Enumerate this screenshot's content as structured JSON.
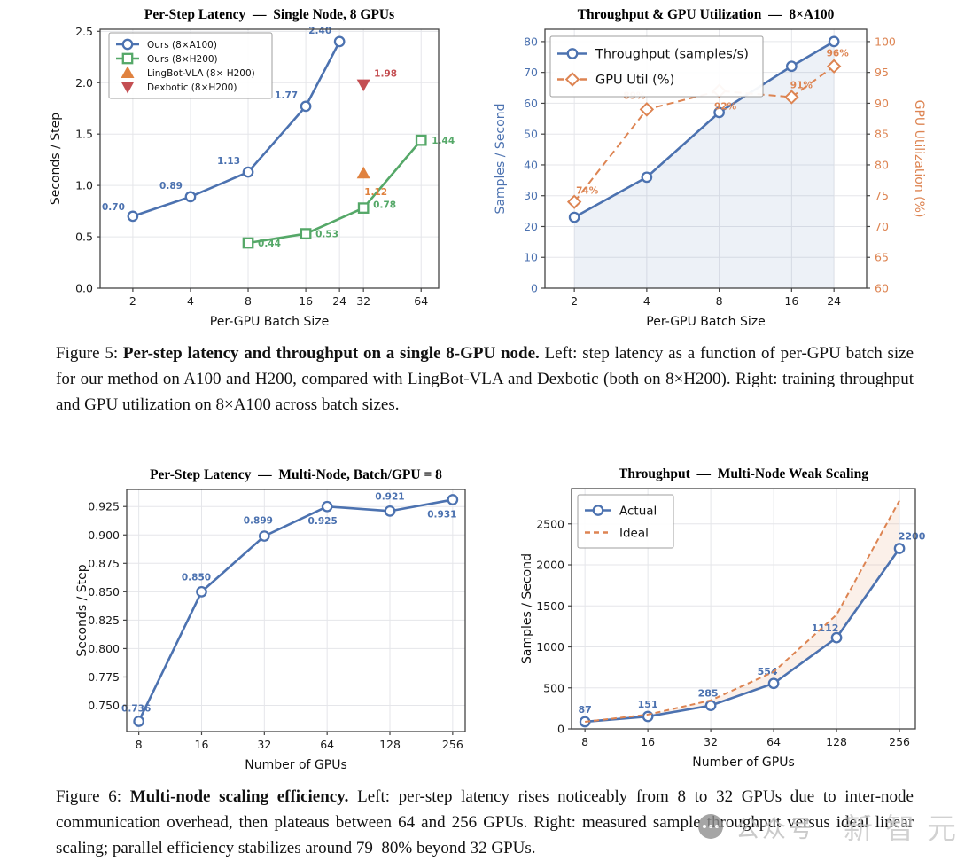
{
  "captions": {
    "fig5": {
      "prefix": "Figure 5: ",
      "bold": "Per-step latency and throughput on a single 8-GPU node.",
      "rest": " Left: step latency as a function of per-GPU batch size for our method on A100 and H200, compared with LingBot-VLA and Dexbotic (both on 8×H200). Right: training throughput and GPU utilization on 8×A100 across batch sizes."
    },
    "fig6": {
      "prefix": "Figure 6: ",
      "bold": "Multi-node scaling efficiency.",
      "rest": " Left: per-step latency rises noticeably from 8 to 32 GPUs due to inter-node communication overhead, then plateaus between 64 and 256 GPUs. Right: measured sample throughput versus ideal linear scaling; parallel efficiency stabilizes around 79–80% beyond 32 GPUs."
    }
  },
  "watermark": {
    "icon": "wechat-chat-icon",
    "label": "公众号",
    "brand": "新智元"
  },
  "colors": {
    "blue": "#4c72b0",
    "green": "#55a868",
    "orange": "#dd8452",
    "red": "#c44e52"
  },
  "chart_data": [
    {
      "type": "line",
      "title": "Per-Step Latency  —  Single Node, 8 GPUs",
      "xlabel": "Per-GPU Batch Size",
      "ylabel": "Seconds / Step",
      "x_scale": "log2",
      "xlim": [
        1.35,
        79
      ],
      "ylim": [
        0,
        2.52
      ],
      "x_ticks": [
        "2",
        "4",
        "8",
        "16",
        "24",
        "32",
        "64"
      ],
      "y_ticks": [
        "0.0",
        "0.5",
        "1.0",
        "1.5",
        "2.0",
        "2.5"
      ],
      "legend": true,
      "label_size": 10.5,
      "series": [
        {
          "name": "Ours (8×A100)",
          "color": "#4c72b0",
          "marker": "circle",
          "line": true,
          "points": [
            [
              2,
              0.7
            ],
            [
              4,
              0.89
            ],
            [
              8,
              1.13
            ],
            [
              16,
              1.77
            ],
            [
              24,
              2.4
            ]
          ],
          "labels": [
            {
              "t": "0.70",
              "dx": -9,
              "dy": -7,
              "a": "end"
            },
            {
              "t": "0.89",
              "dx": -9,
              "dy": -9,
              "a": "end"
            },
            {
              "t": "1.13",
              "dx": -9,
              "dy": -9,
              "a": "end"
            },
            {
              "t": "1.77",
              "dx": -9,
              "dy": -9,
              "a": "end"
            },
            {
              "t": "2.40",
              "dx": -9,
              "dy": -9,
              "a": "end"
            }
          ]
        },
        {
          "name": "Ours (8×H200)",
          "color": "#55a868",
          "marker": "square",
          "line": true,
          "points": [
            [
              8,
              0.44
            ],
            [
              16,
              0.53
            ],
            [
              32,
              0.78
            ],
            [
              64,
              1.44
            ]
          ],
          "labels": [
            {
              "t": "0.44",
              "dx": 11,
              "dy": 4,
              "a": "start"
            },
            {
              "t": "0.53",
              "dx": 11,
              "dy": 4,
              "a": "start"
            },
            {
              "t": "0.78",
              "dx": 11,
              "dy": 0,
              "a": "start"
            },
            {
              "t": "1.44",
              "dx": 12,
              "dy": 4,
              "a": "start"
            }
          ]
        },
        {
          "name": "LingBot-VLA (8× H200)",
          "color": "#e0823f",
          "marker": "tri-up",
          "line": false,
          "points": [
            [
              32,
              1.12
            ]
          ],
          "labels": [
            {
              "t": "1.12",
              "dx": 14,
              "dy": 25,
              "a": "middle"
            }
          ]
        },
        {
          "name": "Dexbotic (8×H200)",
          "color": "#c44e52",
          "marker": "tri-down",
          "line": false,
          "points": [
            [
              32,
              1.98
            ]
          ],
          "labels": [
            {
              "t": "1.98",
              "dx": 12,
              "dy": -9,
              "a": "start"
            }
          ]
        }
      ]
    },
    {
      "type": "line-dual-axis",
      "title": "Throughput & GPU Utilization  —  8×A100",
      "xlabel": "Per-GPU Batch Size",
      "ylabel": "Samples / Second",
      "y2label": "GPU Utilization (%)",
      "y_color": "#4c72b0",
      "y2_color": "#dd8452",
      "x_scale": "log2",
      "xlim": [
        1.51,
        32.8
      ],
      "ylim": [
        0,
        84
      ],
      "y2lim": [
        60,
        102
      ],
      "x_ticks": [
        "2",
        "4",
        "8",
        "16",
        "24"
      ],
      "y_ticks": [
        "0",
        "10",
        "20",
        "30",
        "40",
        "50",
        "60",
        "70",
        "80"
      ],
      "y2_ticks": [
        "60",
        "65",
        "70",
        "75",
        "80",
        "85",
        "90",
        "95",
        "100"
      ],
      "legend": true,
      "label_size": 10.5,
      "fills": [
        {
          "type": "under",
          "series": 0,
          "color": "rgba(76,114,176,0.10)"
        }
      ],
      "series": [
        {
          "name": "Throughput (samples/s)",
          "color": "#4c72b0",
          "marker": "circle",
          "line": true,
          "points": [
            [
              2,
              23
            ],
            [
              4,
              36
            ],
            [
              8,
              57
            ],
            [
              16,
              72
            ],
            [
              24,
              80
            ]
          ],
          "labels": []
        },
        {
          "name": "GPU Util (%)",
          "color": "#dd8452",
          "marker": "diamond",
          "line": true,
          "dash": "8,5",
          "axis": "y2",
          "points": [
            [
              2,
              74
            ],
            [
              4,
              89
            ],
            [
              8,
              92
            ],
            [
              16,
              91
            ],
            [
              24,
              96
            ]
          ],
          "labels": [
            {
              "t": "74%",
              "dx": 2,
              "dy": -9,
              "a": "start"
            },
            {
              "t": "89%",
              "dx": -14,
              "dy": -12,
              "a": "middle"
            },
            {
              "t": "92%",
              "dx": 7,
              "dy": 21,
              "a": "middle"
            },
            {
              "t": "91%",
              "dx": 11,
              "dy": -10,
              "a": "middle"
            },
            {
              "t": "96%",
              "dx": 4,
              "dy": -11,
              "a": "middle"
            }
          ]
        }
      ]
    },
    {
      "type": "line",
      "title": "Per-Step Latency  —  Multi-Node, Batch/GPU = 8",
      "xlabel": "Number of GPUs",
      "ylabel": "Seconds / Step",
      "x_scale": "log2",
      "xlim": [
        7,
        294
      ],
      "ylim": [
        0.727,
        0.94
      ],
      "x_ticks": [
        "8",
        "16",
        "32",
        "64",
        "128",
        "256"
      ],
      "y_ticks": [
        "0.750",
        "0.775",
        "0.800",
        "0.825",
        "0.850",
        "0.875",
        "0.900",
        "0.925"
      ],
      "legend": false,
      "label_size": 10.5,
      "series": [
        {
          "name": "Latency",
          "color": "#4c72b0",
          "marker": "circle",
          "line": true,
          "points": [
            [
              8,
              0.736
            ],
            [
              16,
              0.85
            ],
            [
              32,
              0.899
            ],
            [
              64,
              0.925
            ],
            [
              128,
              0.921
            ],
            [
              256,
              0.931
            ]
          ],
          "labels": [
            {
              "t": "0.736",
              "dx": -3,
              "dy": -11,
              "a": "middle"
            },
            {
              "t": "0.850",
              "dx": -6,
              "dy": -13,
              "a": "middle"
            },
            {
              "t": "0.899",
              "dx": -7,
              "dy": -14,
              "a": "middle"
            },
            {
              "t": "0.925",
              "dx": -5,
              "dy": 20,
              "a": "middle"
            },
            {
              "t": "0.921",
              "dx": 0,
              "dy": -13,
              "a": "middle"
            },
            {
              "t": "0.931",
              "dx": -12,
              "dy": 20,
              "a": "middle"
            }
          ]
        }
      ]
    },
    {
      "type": "line",
      "title": "Throughput  —  Multi-Node Weak Scaling",
      "xlabel": "Number of GPUs",
      "ylabel": "Samples / Second",
      "x_scale": "log2",
      "xlim": [
        6.9,
        305
      ],
      "ylim": [
        0,
        2930
      ],
      "x_ticks": [
        "8",
        "16",
        "32",
        "64",
        "128",
        "256"
      ],
      "y_ticks": [
        "0",
        "500",
        "1000",
        "1500",
        "2000",
        "2500"
      ],
      "legend": true,
      "label_size": 11,
      "fills": [
        {
          "type": "between",
          "upper": 1,
          "lower": 0,
          "color": "rgba(224,138,88,0.13)"
        }
      ],
      "series": [
        {
          "name": "Actual",
          "color": "#4c72b0",
          "marker": "circle",
          "line": true,
          "points": [
            [
              8,
              87
            ],
            [
              16,
              151
            ],
            [
              32,
              285
            ],
            [
              64,
              554
            ],
            [
              128,
              1112
            ],
            [
              256,
              2200
            ]
          ],
          "labels": [
            {
              "t": "87",
              "dx": 0,
              "dy": -10,
              "a": "middle"
            },
            {
              "t": "151",
              "dx": 0,
              "dy": -10,
              "a": "middle"
            },
            {
              "t": "285",
              "dx": -3,
              "dy": -10,
              "a": "middle"
            },
            {
              "t": "554",
              "dx": -7,
              "dy": -10,
              "a": "middle"
            },
            {
              "t": "1112",
              "dx": -13,
              "dy": -7,
              "a": "middle"
            },
            {
              "t": "2200",
              "dx": 14,
              "dy": -10,
              "a": "middle"
            }
          ]
        },
        {
          "name": "Ideal",
          "color": "#dd8452",
          "marker": "none",
          "line": true,
          "dash": "6,4",
          "points": [
            [
              8,
              87
            ],
            [
              16,
              174
            ],
            [
              32,
              348
            ],
            [
              64,
              696
            ],
            [
              128,
              1392
            ],
            [
              256,
              2784
            ]
          ],
          "labels": []
        }
      ]
    }
  ]
}
